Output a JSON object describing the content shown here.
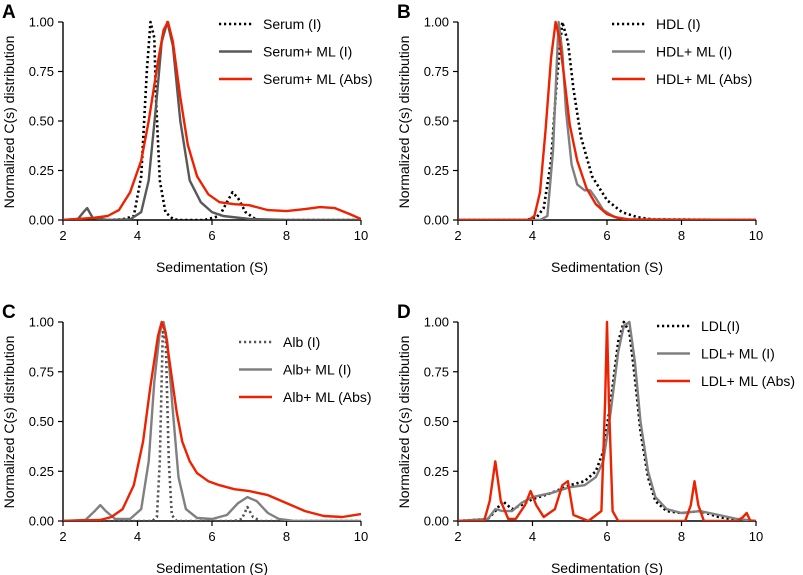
{
  "figure": {
    "panels": [
      "A",
      "B",
      "C",
      "D"
    ]
  },
  "chart_data": [
    {
      "panel": "A",
      "type": "line",
      "xlabel": "Sedimentation (S)",
      "ylabel": "Normalized C(s) distribution",
      "xlim": [
        2,
        10
      ],
      "ylim": [
        0,
        1.0
      ],
      "xticks": [
        "2",
        "4",
        "6",
        "8",
        "10"
      ],
      "yticks": [
        "0.00",
        "0.25",
        "0.50",
        "0.75",
        "1.00"
      ],
      "legend_position": "top-right",
      "series": [
        {
          "name": "Serum (I)",
          "color": "#000000",
          "style": "dotted",
          "x": [
            2,
            3.2,
            3.6,
            3.9,
            4.1,
            4.25,
            4.35,
            4.45,
            4.5,
            4.6,
            4.75,
            4.95,
            5.1,
            5.3,
            5.8,
            6.2,
            6.4,
            6.55,
            6.7,
            6.9,
            7.2,
            8,
            10
          ],
          "y": [
            0,
            0,
            0.003,
            0.02,
            0.22,
            0.75,
            1.0,
            0.92,
            0.6,
            0.2,
            0.04,
            0.005,
            0,
            0,
            0,
            0.02,
            0.09,
            0.14,
            0.11,
            0.04,
            0,
            0,
            0
          ]
        },
        {
          "name": "Serum+ ML (I)",
          "color": "#595959",
          "style": "solid",
          "x": [
            2,
            2.4,
            2.55,
            2.65,
            2.8,
            3.2,
            3.8,
            4.1,
            4.3,
            4.5,
            4.65,
            4.8,
            4.95,
            5.15,
            5.4,
            5.7,
            6,
            6.3,
            7,
            8,
            10
          ],
          "y": [
            0,
            0.005,
            0.04,
            0.06,
            0.01,
            0,
            0.003,
            0.04,
            0.2,
            0.58,
            0.9,
            1.0,
            0.88,
            0.5,
            0.2,
            0.09,
            0.04,
            0.02,
            0.005,
            0,
            0
          ]
        },
        {
          "name": "Serum+ ML (Abs)",
          "color": "#ee2200",
          "style": "solid",
          "x": [
            2,
            2.8,
            3.2,
            3.5,
            3.8,
            4.1,
            4.3,
            4.55,
            4.7,
            4.82,
            4.95,
            5.15,
            5.35,
            5.6,
            5.9,
            6.2,
            6.6,
            7,
            7.5,
            8,
            8.5,
            8.9,
            9.3,
            9.7,
            10
          ],
          "y": [
            0,
            0.01,
            0.02,
            0.05,
            0.14,
            0.3,
            0.5,
            0.8,
            0.96,
            1.0,
            0.9,
            0.62,
            0.38,
            0.22,
            0.13,
            0.09,
            0.08,
            0.075,
            0.05,
            0.045,
            0.055,
            0.065,
            0.06,
            0.03,
            0.005
          ]
        }
      ]
    },
    {
      "panel": "B",
      "type": "line",
      "xlabel": "Sedimentation (S)",
      "ylabel": "Normalized C(s) distribution",
      "xlim": [
        2,
        10
      ],
      "ylim": [
        0,
        1.0
      ],
      "xticks": [
        "2",
        "4",
        "6",
        "8",
        "10"
      ],
      "yticks": [
        "0.00",
        "0.25",
        "0.50",
        "0.75",
        "1.00"
      ],
      "legend_position": "top-right",
      "series": [
        {
          "name": "HDL (I)",
          "color": "#000000",
          "style": "dotted",
          "x": [
            2,
            3.8,
            4.1,
            4.3,
            4.5,
            4.65,
            4.8,
            4.95,
            5.1,
            5.3,
            5.6,
            6,
            6.4,
            6.8,
            7.2,
            10
          ],
          "y": [
            0,
            0,
            0.01,
            0.06,
            0.3,
            0.7,
            1.0,
            0.9,
            0.66,
            0.42,
            0.22,
            0.1,
            0.04,
            0.015,
            0.003,
            0
          ]
        },
        {
          "name": "HDL+ ML (I)",
          "color": "#808080",
          "style": "solid",
          "x": [
            2,
            4.2,
            4.4,
            4.55,
            4.7,
            4.8,
            4.9,
            5.05,
            5.2,
            5.4,
            5.55,
            5.7,
            5.9,
            6.2,
            6.6,
            10
          ],
          "y": [
            0,
            0,
            0.02,
            0.35,
            1.0,
            0.85,
            0.55,
            0.28,
            0.18,
            0.15,
            0.15,
            0.11,
            0.05,
            0.015,
            0.003,
            0
          ]
        },
        {
          "name": "HDL+ ML (Abs)",
          "color": "#ee2200",
          "style": "solid",
          "x": [
            2,
            3.9,
            4.05,
            4.2,
            4.35,
            4.5,
            4.62,
            4.72,
            4.85,
            5,
            5.2,
            5.45,
            5.7,
            6,
            6.3,
            6.6,
            10
          ],
          "y": [
            0,
            0,
            0.02,
            0.14,
            0.45,
            0.82,
            1.0,
            0.92,
            0.72,
            0.48,
            0.3,
            0.16,
            0.08,
            0.03,
            0.01,
            0.002,
            0
          ]
        }
      ]
    },
    {
      "panel": "C",
      "type": "line",
      "xlabel": "Sedimentation (S)",
      "ylabel": "Normalized C(s) distribution",
      "xlim": [
        2,
        10
      ],
      "ylim": [
        0,
        1.0
      ],
      "xticks": [
        "2",
        "4",
        "6",
        "8",
        "10"
      ],
      "yticks": [
        "0.00",
        "0.25",
        "0.50",
        "0.75",
        "1.00"
      ],
      "legend_position": "top-right",
      "series": [
        {
          "name": "Alb (I)",
          "color": "#555555",
          "style": "dotted",
          "x": [
            2,
            4.4,
            4.52,
            4.6,
            4.68,
            4.76,
            4.84,
            4.92,
            5.05,
            6.6,
            6.8,
            6.95,
            7.1,
            7.3,
            10
          ],
          "y": [
            0,
            0,
            0.02,
            0.3,
            0.95,
            0.9,
            0.3,
            0.03,
            0,
            0,
            0.01,
            0.07,
            0.02,
            0,
            0
          ]
        },
        {
          "name": "Alb+ ML (I)",
          "color": "#808080",
          "style": "solid",
          "x": [
            2,
            2.6,
            2.85,
            3.0,
            3.15,
            3.4,
            3.8,
            4.1,
            4.3,
            4.45,
            4.6,
            4.7,
            4.8,
            4.95,
            5.1,
            5.3,
            5.6,
            6,
            6.4,
            6.7,
            6.95,
            7.2,
            7.5,
            7.8,
            8.2,
            10
          ],
          "y": [
            0,
            0.005,
            0.05,
            0.08,
            0.05,
            0.01,
            0.01,
            0.06,
            0.3,
            0.7,
            0.95,
            1.0,
            0.9,
            0.55,
            0.22,
            0.06,
            0.015,
            0.01,
            0.03,
            0.09,
            0.12,
            0.1,
            0.04,
            0.01,
            0,
            0
          ]
        },
        {
          "name": "Alb+ ML (Abs)",
          "color": "#ee2200",
          "style": "solid",
          "x": [
            2,
            3,
            3.3,
            3.6,
            3.9,
            4.15,
            4.35,
            4.55,
            4.65,
            4.75,
            4.9,
            5.05,
            5.2,
            5.4,
            5.6,
            5.9,
            6.2,
            6.6,
            7,
            7.5,
            8,
            8.5,
            9,
            9.5,
            10
          ],
          "y": [
            0,
            0.005,
            0.02,
            0.06,
            0.18,
            0.4,
            0.68,
            0.93,
            1.0,
            0.95,
            0.75,
            0.55,
            0.4,
            0.3,
            0.24,
            0.2,
            0.18,
            0.16,
            0.15,
            0.13,
            0.09,
            0.05,
            0.025,
            0.02,
            0.035
          ]
        }
      ]
    },
    {
      "panel": "D",
      "type": "line",
      "xlabel": "Sedimentation (S)",
      "ylabel": "Normalized C(s) distribution",
      "xlim": [
        2,
        10
      ],
      "ylim": [
        0,
        1.0
      ],
      "xticks": [
        "2",
        "4",
        "6",
        "8",
        "10"
      ],
      "yticks": [
        "0.00",
        "0.25",
        "0.50",
        "0.75",
        "1.00"
      ],
      "legend_position": "top-right",
      "series": [
        {
          "name": "LDL(I)",
          "color": "#000000",
          "style": "dotted",
          "x": [
            2,
            2.8,
            3.0,
            3.2,
            3.45,
            3.7,
            4,
            4.5,
            5,
            5.4,
            5.7,
            5.9,
            6.1,
            6.3,
            6.45,
            6.6,
            6.75,
            6.9,
            7.1,
            7.3,
            7.6,
            8,
            8.5,
            9,
            9.5,
            10
          ],
          "y": [
            0,
            0.01,
            0.05,
            0.1,
            0.06,
            0.08,
            0.11,
            0.14,
            0.18,
            0.2,
            0.25,
            0.35,
            0.6,
            0.9,
            1.0,
            0.95,
            0.72,
            0.45,
            0.22,
            0.1,
            0.05,
            0.04,
            0.05,
            0.02,
            0.005,
            0
          ]
        },
        {
          "name": "LDL+ ML (I)",
          "color": "#808080",
          "style": "solid",
          "x": [
            2,
            2.8,
            3.0,
            3.2,
            3.45,
            3.7,
            4,
            4.5,
            5,
            5.4,
            5.7,
            5.9,
            6.1,
            6.3,
            6.45,
            6.6,
            6.75,
            6.9,
            7.1,
            7.3,
            7.6,
            8,
            8.5,
            9,
            9.5,
            10
          ],
          "y": [
            0,
            0.01,
            0.06,
            0.05,
            0.05,
            0.09,
            0.12,
            0.14,
            0.17,
            0.18,
            0.22,
            0.3,
            0.55,
            0.85,
            0.98,
            1.0,
            0.8,
            0.5,
            0.25,
            0.12,
            0.06,
            0.04,
            0.05,
            0.03,
            0.01,
            0
          ]
        },
        {
          "name": "LDL+ ML (Abs)",
          "color": "#ee2200",
          "style": "solid",
          "x": [
            2,
            2.7,
            2.85,
            3.0,
            3.15,
            3.35,
            3.55,
            3.8,
            3.95,
            4.1,
            4.3,
            4.6,
            4.8,
            4.95,
            5.1,
            5.5,
            5.85,
            5.95,
            6.0,
            6.05,
            6.15,
            6.3,
            8.1,
            8.25,
            8.35,
            8.45,
            8.6,
            9.5,
            9.65,
            9.75,
            9.85,
            10
          ],
          "y": [
            0,
            0,
            0.1,
            0.3,
            0.1,
            0.01,
            0.01,
            0.08,
            0.15,
            0.08,
            0.02,
            0.06,
            0.18,
            0.2,
            0.03,
            0,
            0.05,
            0.6,
            1.0,
            0.6,
            0.05,
            0,
            0,
            0.08,
            0.2,
            0.08,
            0,
            0,
            0.02,
            0.04,
            0,
            0
          ]
        }
      ]
    }
  ]
}
